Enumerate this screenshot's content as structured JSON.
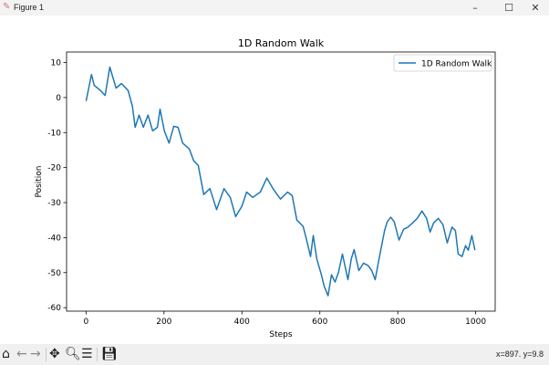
{
  "window": {
    "title": "Figure 1",
    "icon": "matplotlib-icon",
    "controls": [
      "minimize-icon",
      "maximize-icon",
      "close-icon"
    ],
    "minimize": "–",
    "maximize": "☐",
    "close": "✕"
  },
  "toolbar": {
    "buttons": [
      "home-icon",
      "back-icon",
      "forward-icon",
      "pan-icon",
      "zoom-icon",
      "configure-subplots-icon",
      "save-icon"
    ],
    "coords": "x=897. y=9.8"
  },
  "chart_data": {
    "type": "line",
    "title": "1D Random Walk",
    "xlabel": "Steps",
    "ylabel": "Position",
    "xlim": [
      -50,
      1050
    ],
    "ylim": [
      -61,
      13
    ],
    "xticks": [
      0,
      200,
      400,
      600,
      800,
      1000
    ],
    "yticks": [
      10,
      0,
      -10,
      -20,
      -30,
      -40,
      -50,
      -60
    ],
    "grid": false,
    "legend": "top-right",
    "color": "#1f77b4",
    "series": [
      {
        "name": "1D Random Walk",
        "x": [
          0,
          2,
          14,
          21,
          37,
          49,
          61,
          77,
          91,
          108,
          119,
          126,
          136,
          147,
          159,
          171,
          183,
          190,
          201,
          213,
          225,
          236,
          248,
          265,
          276,
          288,
          302,
          318,
          335,
          354,
          370,
          384,
          400,
          412,
          428,
          447,
          464,
          482,
          499,
          517,
          529,
          541,
          557,
          564,
          576,
          583,
          592,
          604,
          611,
          621,
          630,
          639,
          648,
          658,
          672,
          681,
          688,
          700,
          712,
          724,
          733,
          742,
          752,
          766,
          773,
          782,
          791,
          803,
          815,
          826,
          838,
          850,
          862,
          874,
          883,
          892,
          904,
          916,
          927,
          939,
          948,
          955,
          965,
          974,
          981,
          990,
          998
        ],
        "y": [
          -1,
          0,
          6.6,
          3.5,
          2,
          0.6,
          8.7,
          2.7,
          4,
          2,
          -2.5,
          -8.5,
          -5,
          -8.5,
          -5,
          -9.5,
          -8.5,
          -3.3,
          -9.5,
          -13,
          -8.2,
          -8.5,
          -13,
          -14.7,
          -18,
          -19.4,
          -27.7,
          -26,
          -32,
          -26,
          -28.5,
          -34,
          -31,
          -27,
          -28.5,
          -27,
          -23,
          -26.4,
          -29,
          -27,
          -28,
          -35,
          -36.8,
          -39.7,
          -45.4,
          -39.4,
          -46,
          -50.6,
          -53.8,
          -56.6,
          -50.6,
          -52.7,
          -49.9,
          -44.7,
          -52,
          -46,
          -43.4,
          -49.4,
          -47.3,
          -48,
          -49.4,
          -52,
          -46,
          -38,
          -35.5,
          -34.2,
          -35.5,
          -40.7,
          -37.6,
          -37,
          -35.8,
          -34.5,
          -32.4,
          -34.5,
          -38.4,
          -35.8,
          -34.5,
          -36.3,
          -41.5,
          -37,
          -38,
          -44.7,
          -45.4,
          -42.3,
          -43.6,
          -39.4,
          -43.6
        ]
      }
    ]
  }
}
